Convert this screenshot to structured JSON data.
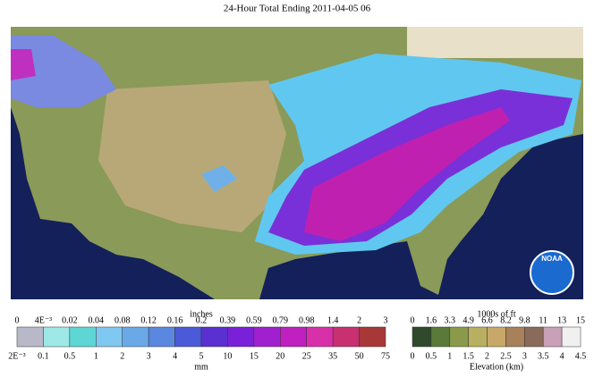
{
  "header": {
    "title": "24-Hour Total Ending 2011-04-05 06"
  },
  "map": {
    "logo": "NOAA"
  },
  "precip_legend": {
    "top_unit": "inches",
    "bottom_unit": "mm",
    "top_labels": [
      "0",
      "4E⁻³",
      "0.02",
      "0.04",
      "0.08",
      "0.12",
      "0.16",
      "0.2",
      "0.39",
      "0.59",
      "0.79",
      "0.98",
      "1.4",
      "2",
      "3"
    ],
    "bottom_labels": [
      "2E⁻³",
      "0.1",
      "0.5",
      "1",
      "2",
      "3",
      "4",
      "5",
      "10",
      "15",
      "20",
      "25",
      "35",
      "50",
      "75"
    ],
    "colors": [
      "#b8b8c8",
      "#9fe8e8",
      "#5fd6d6",
      "#7fc8f0",
      "#6aa8e8",
      "#5a88e0",
      "#4a5ad8",
      "#5a30d0",
      "#7a20d8",
      "#a020d0",
      "#c020c0",
      "#d830a8",
      "#c83070",
      "#a83838"
    ]
  },
  "elevation_legend": {
    "top_unit": "1000s of ft",
    "bottom_unit": "Elevation (km)",
    "top_labels": [
      "0",
      "1.6",
      "3.3",
      "4.9",
      "6.6",
      "8.2",
      "9.8",
      "11",
      "13",
      "15"
    ],
    "bottom_labels": [
      "0",
      "0.5",
      "1",
      "1.5",
      "2",
      "2.5",
      "3",
      "3.5",
      "4",
      "4.5"
    ],
    "colors": [
      "#2f4a2a",
      "#5a7a3a",
      "#8a9a4a",
      "#b8b060",
      "#c8a868",
      "#a8805a",
      "#8a6a5a",
      "#c8a0b8",
      "#f0f0f0"
    ]
  }
}
